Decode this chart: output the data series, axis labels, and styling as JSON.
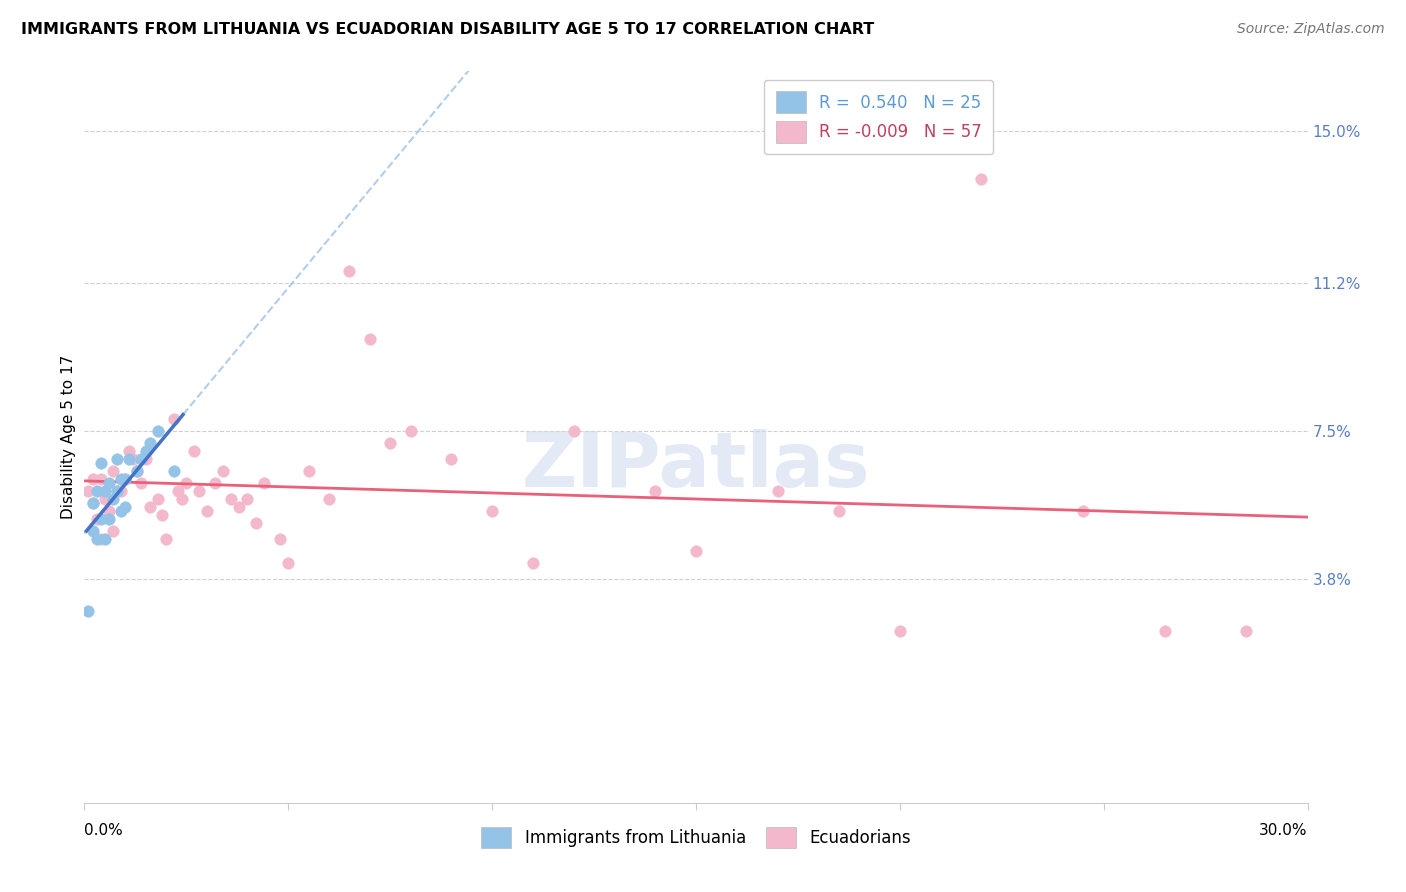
{
  "title": "IMMIGRANTS FROM LITHUANIA VS ECUADORIAN DISABILITY AGE 5 TO 17 CORRELATION CHART",
  "source": "Source: ZipAtlas.com",
  "ylabel": "Disability Age 5 to 17",
  "ytick_vals": [
    0.038,
    0.075,
    0.112,
    0.15
  ],
  "ytick_labels": [
    "3.8%",
    "7.5%",
    "11.2%",
    "15.0%"
  ],
  "xlim": [
    0.0,
    0.3
  ],
  "ylim": [
    -0.018,
    0.165
  ],
  "legend_color1": "#93c4e8",
  "legend_color2": "#f4b8cc",
  "watermark": "ZIPatlas",
  "blue_line_color": "#4472c4",
  "blue_dash_color": "#a0c0e8",
  "pink_line_color": "#e8607a",
  "grid_color": "#d0d0d0",
  "scatter_blue_color": "#93c4e8",
  "scatter_pink_color": "#f4b8cc",
  "blue_x": [
    0.001,
    0.002,
    0.002,
    0.003,
    0.003,
    0.004,
    0.004,
    0.005,
    0.005,
    0.006,
    0.006,
    0.007,
    0.008,
    0.008,
    0.009,
    0.009,
    0.01,
    0.01,
    0.011,
    0.013,
    0.014,
    0.015,
    0.016,
    0.018,
    0.022
  ],
  "blue_y": [
    0.03,
    0.057,
    0.05,
    0.048,
    0.06,
    0.053,
    0.067,
    0.048,
    0.06,
    0.053,
    0.062,
    0.058,
    0.06,
    0.068,
    0.063,
    0.055,
    0.056,
    0.063,
    0.068,
    0.065,
    0.068,
    0.07,
    0.072,
    0.075,
    0.065
  ],
  "pink_x": [
    0.001,
    0.002,
    0.002,
    0.003,
    0.004,
    0.004,
    0.005,
    0.006,
    0.007,
    0.007,
    0.008,
    0.009,
    0.01,
    0.011,
    0.012,
    0.013,
    0.014,
    0.015,
    0.016,
    0.018,
    0.019,
    0.02,
    0.022,
    0.023,
    0.024,
    0.025,
    0.027,
    0.028,
    0.03,
    0.032,
    0.034,
    0.036,
    0.038,
    0.04,
    0.042,
    0.044,
    0.048,
    0.05,
    0.055,
    0.06,
    0.065,
    0.07,
    0.075,
    0.08,
    0.09,
    0.1,
    0.11,
    0.12,
    0.14,
    0.15,
    0.17,
    0.185,
    0.2,
    0.22,
    0.245,
    0.265,
    0.285
  ],
  "pink_y": [
    0.06,
    0.057,
    0.063,
    0.053,
    0.048,
    0.063,
    0.058,
    0.055,
    0.065,
    0.05,
    0.06,
    0.06,
    0.063,
    0.07,
    0.068,
    0.065,
    0.062,
    0.068,
    0.056,
    0.058,
    0.054,
    0.048,
    0.078,
    0.06,
    0.058,
    0.062,
    0.07,
    0.06,
    0.055,
    0.062,
    0.065,
    0.058,
    0.056,
    0.058,
    0.052,
    0.062,
    0.048,
    0.042,
    0.065,
    0.058,
    0.115,
    0.098,
    0.072,
    0.075,
    0.068,
    0.055,
    0.042,
    0.075,
    0.06,
    0.045,
    0.06,
    0.055,
    0.025,
    0.138,
    0.055,
    0.025,
    0.025
  ]
}
